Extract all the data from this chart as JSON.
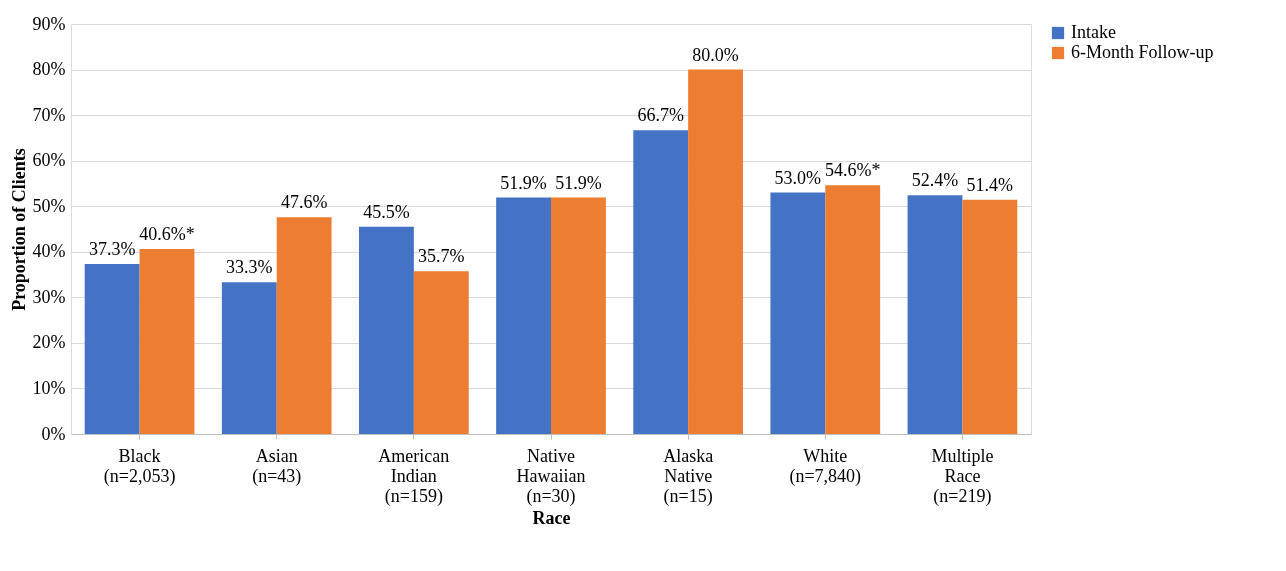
{
  "chart_data": {
    "type": "bar",
    "xlabel": "Race",
    "ylabel": "Proportion of Clients",
    "categories": [
      "Black\n(n=2,053)",
      "Asian\n(n=43)",
      "American\nIndian\n(n=159)",
      "Native\nHawaiian\n(n=30)",
      "Alaska\nNative\n(n=15)",
      "White\n(n=7,840)",
      "Multiple\nRace\n(n=219)"
    ],
    "series": [
      {
        "name": "Intake",
        "color": "#4472c4",
        "values": [
          37.3,
          33.3,
          45.5,
          51.9,
          66.7,
          53.0,
          52.4
        ],
        "value_labels": [
          "37.3%",
          "33.3%",
          "45.5%",
          "51.9%",
          "66.7%",
          "53.0%",
          "52.4%"
        ]
      },
      {
        "name": "6-Month Follow-up",
        "color": "#ed7d31",
        "values": [
          40.6,
          47.6,
          35.7,
          51.9,
          80.0,
          54.6,
          51.4
        ],
        "value_labels": [
          "40.6%*",
          "47.6%",
          "35.7%",
          "51.9%",
          "80.0%",
          "54.6%*",
          "51.4%"
        ]
      }
    ],
    "ylim": [
      0,
      90
    ],
    "yticks": [
      {
        "value": 0,
        "label": "0%"
      },
      {
        "value": 10,
        "label": "10%"
      },
      {
        "value": 20,
        "label": "20%"
      },
      {
        "value": 30,
        "label": "30%"
      },
      {
        "value": 40,
        "label": "40%"
      },
      {
        "value": 50,
        "label": "50%"
      },
      {
        "value": 60,
        "label": "60%"
      },
      {
        "value": 70,
        "label": "70%"
      },
      {
        "value": 80,
        "label": "80%"
      },
      {
        "value": 90,
        "label": "90%"
      }
    ],
    "grid": "y",
    "legend": "right"
  }
}
